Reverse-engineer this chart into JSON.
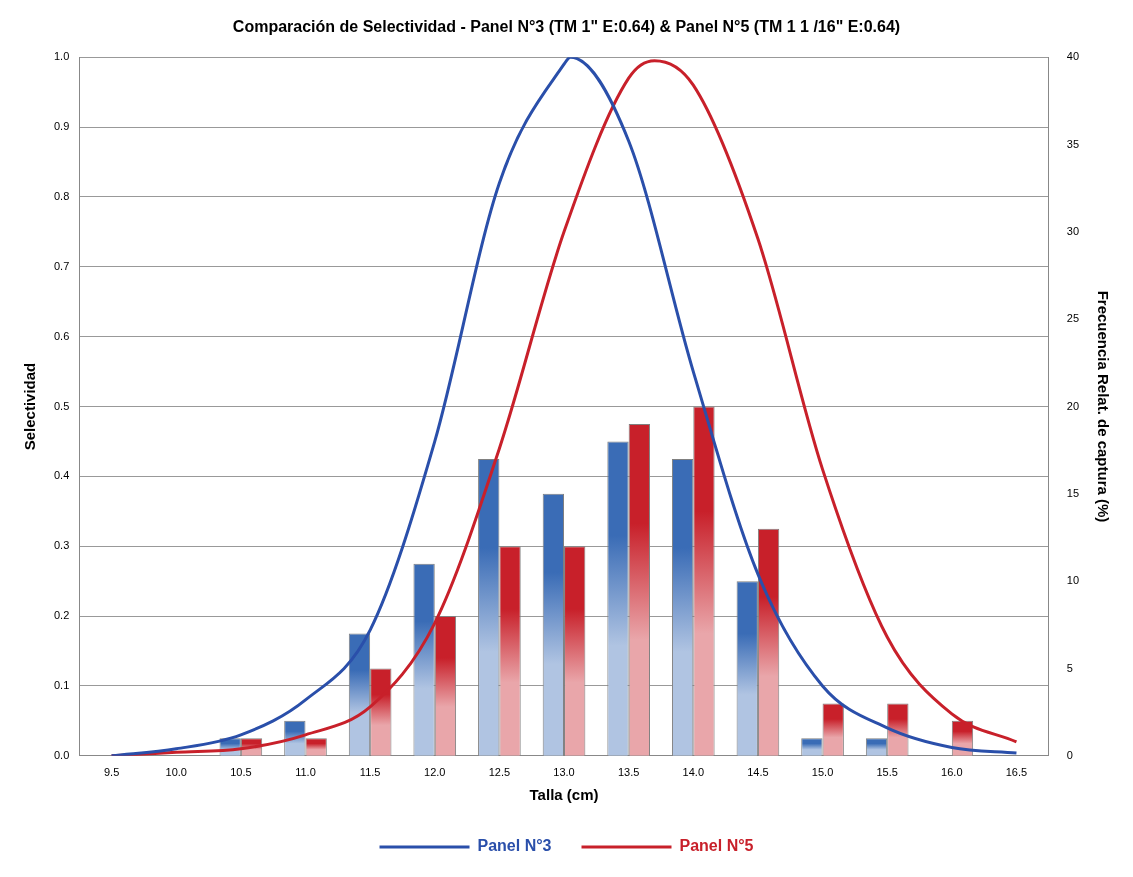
{
  "chart_data": {
    "type": "bar",
    "title": "Comparación de Selectividad - Panel N°3 (TM 1\" E:0.64) & Panel N°5 (TM 1 1 /16\" E:0.64)",
    "xlabel": "Talla (cm)",
    "ylabel": "Selectividad",
    "y2label": "Frecuencia Relat. de captura (%)",
    "xlim": [
      9.25,
      16.75
    ],
    "xticks": [
      9.5,
      {
        "value": 10,
        "label": "10.0"
      },
      10.5,
      {
        "value": 11,
        "label": "11.0"
      },
      11.5,
      {
        "value": 12,
        "label": "12.0"
      },
      12.5,
      {
        "value": 13,
        "label": "13.0"
      },
      13.5,
      {
        "value": 14,
        "label": "14.0"
      },
      14.5,
      {
        "value": 15,
        "label": "15.0"
      },
      15.5,
      {
        "value": 16,
        "label": "16.0"
      },
      16.5
    ],
    "ylim": [
      0,
      1
    ],
    "yticks": [
      {
        "value": 0,
        "label": "0.0"
      },
      {
        "value": 0.1,
        "label": "0.1"
      },
      {
        "value": 0.2,
        "label": "0.2"
      },
      {
        "value": 0.3,
        "label": "0.3"
      },
      {
        "value": 0.4,
        "label": "0.4"
      },
      {
        "value": 0.5,
        "label": "0.5"
      },
      {
        "value": 0.6,
        "label": "0.6"
      },
      {
        "value": 0.7,
        "label": "0.7"
      },
      {
        "value": 0.8,
        "label": "0.8"
      },
      {
        "value": 0.9,
        "label": "0.9"
      },
      {
        "value": 1,
        "label": "1.0"
      }
    ],
    "y2lim": [
      0,
      40
    ],
    "y2ticks": [
      0,
      5,
      10,
      15,
      20,
      25,
      30,
      35,
      40
    ],
    "grid": "y",
    "legend": "bottom",
    "series": [
      {
        "axis": "y2",
        "color": "#3a6cb6",
        "x": [
          10.5,
          11,
          11.5,
          12,
          12.5,
          13,
          13.5,
          14,
          14.5,
          15,
          15.5
        ],
        "values": [
          1,
          2,
          7,
          11,
          17,
          15,
          18,
          17,
          10,
          1,
          1
        ]
      },
      {
        "axis": "y2",
        "color": "#c8202a",
        "x": [
          10.5,
          11,
          11.5,
          12,
          12.5,
          13,
          13.5,
          14,
          14.5,
          15,
          15.5,
          16
        ],
        "values": [
          1,
          1,
          5,
          8,
          12,
          12,
          19,
          20,
          13,
          3,
          3,
          2
        ]
      },
      {
        "type": "line",
        "name": "Panel N°3",
        "color": "#2a4faa",
        "x": [
          9.5,
          10,
          10.5,
          11,
          11.5,
          12,
          12.5,
          13,
          13.05,
          13.5,
          14,
          14.5,
          15,
          15.5,
          16,
          16.5
        ],
        "values": [
          0,
          0.01,
          0.03,
          0.08,
          0.18,
          0.45,
          0.82,
          0.99,
          1,
          0.88,
          0.55,
          0.26,
          0.1,
          0.04,
          0.012,
          0.004
        ]
      },
      {
        "type": "line",
        "name": "Panel N°5",
        "color": "#c8202a",
        "x": [
          9.5,
          10,
          10.5,
          11,
          11.5,
          12,
          12.5,
          13,
          13.5,
          13.7,
          14,
          14.5,
          15,
          15.5,
          16,
          16.5
        ],
        "values": [
          0,
          0.005,
          0.01,
          0.03,
          0.07,
          0.19,
          0.44,
          0.75,
          0.97,
          0.995,
          0.96,
          0.74,
          0.41,
          0.17,
          0.06,
          0.02
        ]
      }
    ]
  }
}
